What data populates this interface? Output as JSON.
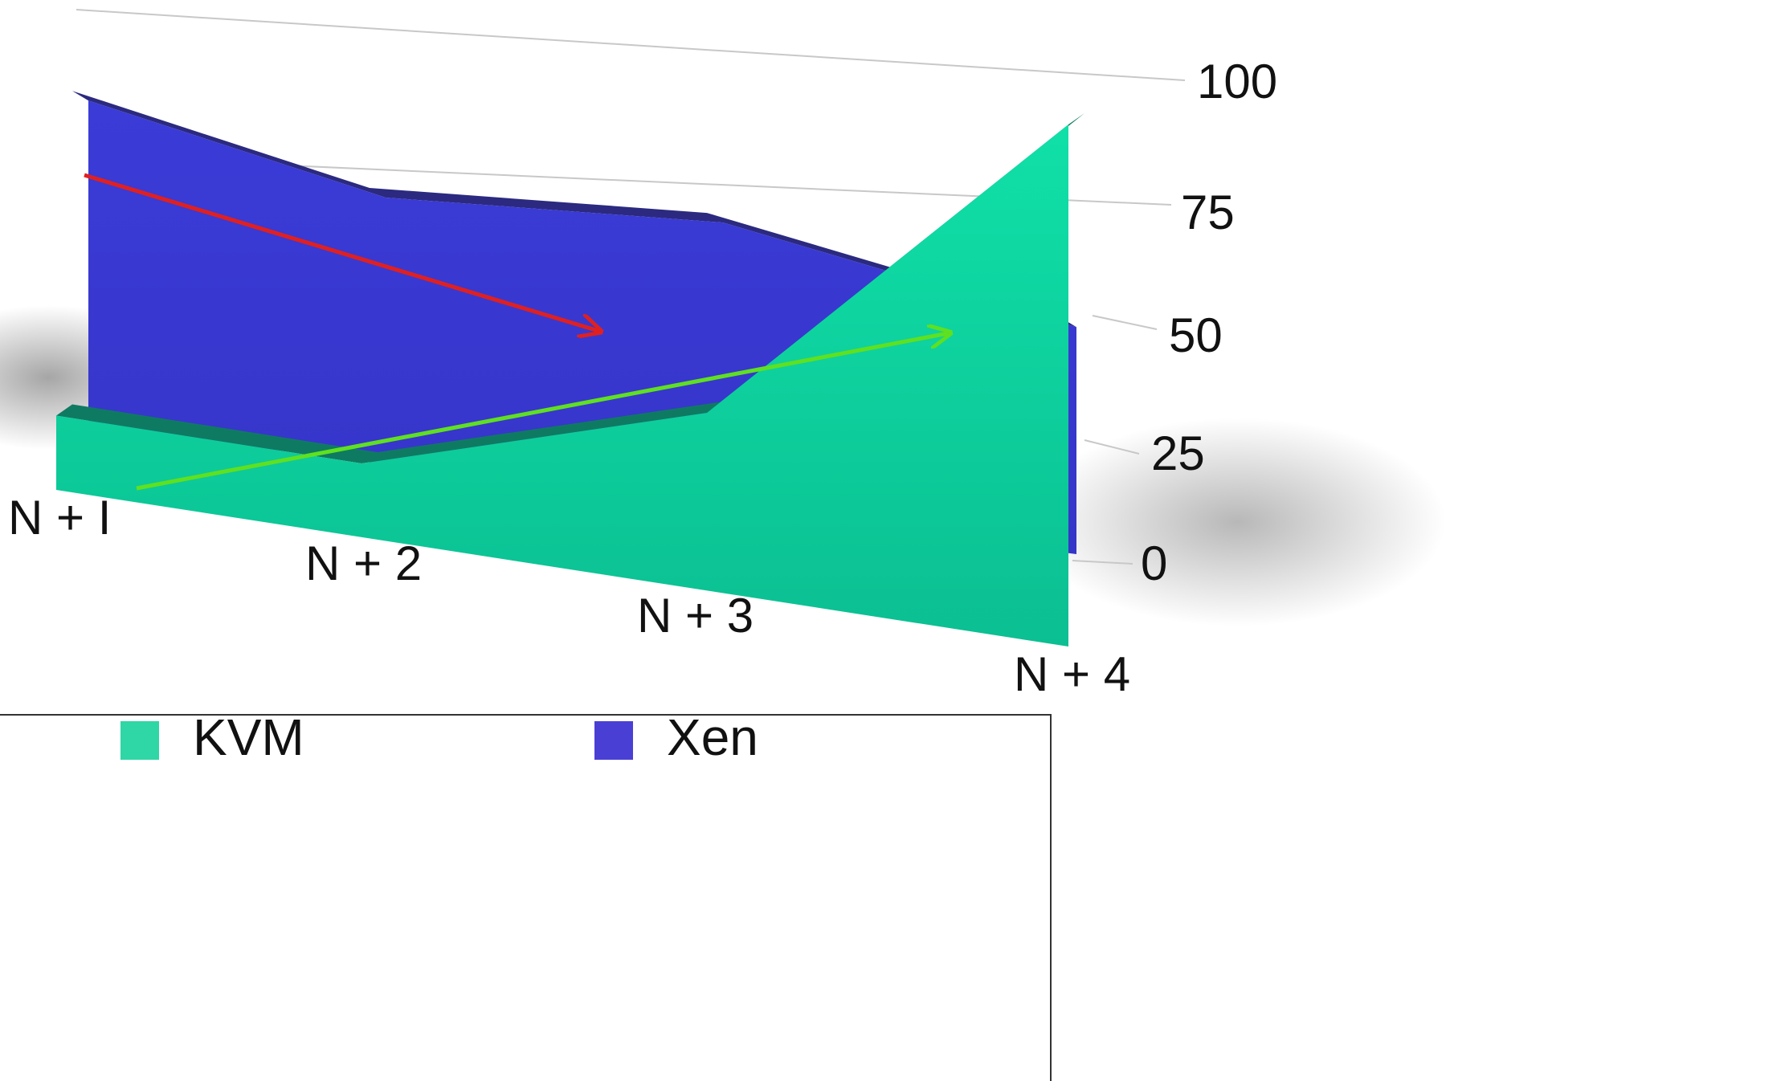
{
  "chart_data": {
    "type": "area",
    "categories": [
      "N + I",
      "N + 2",
      "N + 3",
      "N + 4"
    ],
    "y_ticks": [
      "0",
      "25",
      "50",
      "75",
      "100"
    ],
    "ylim": [
      0,
      100
    ],
    "series": [
      {
        "name": "Xen",
        "values": [
          88,
          70,
          70,
          55
        ],
        "color": "#3b3cd9",
        "top_color": "#2b2a80"
      },
      {
        "name": "KVM",
        "values": [
          25,
          25,
          50,
          100
        ],
        "color": "#0fd9a6",
        "top_color": "#0f7a62"
      }
    ],
    "trend_arrows": [
      {
        "series": "Xen",
        "color": "#e02020",
        "direction": "down"
      },
      {
        "series": "KVM",
        "color": "#5fe020",
        "direction": "up"
      }
    ],
    "legend": [
      {
        "label": "KVM",
        "color": "#2fd6a6"
      },
      {
        "label": "Xen",
        "color": "#4a3fd4"
      }
    ],
    "grid": true,
    "legend_position": "bottom",
    "perspective_3d": true
  }
}
